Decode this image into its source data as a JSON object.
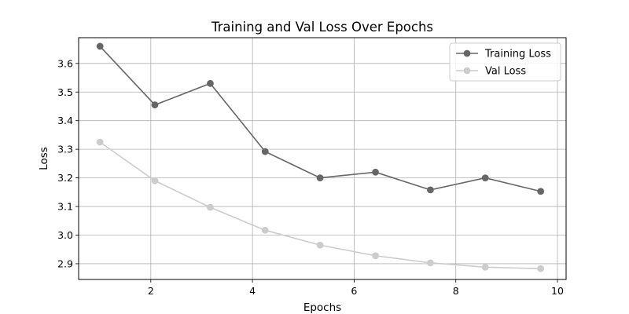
{
  "chart_data": {
    "type": "line",
    "title": "Training and Val Loss Over Epochs",
    "xlabel": "Epochs",
    "ylabel": "Loss",
    "xlim": [
      0.58,
      10.17
    ],
    "ylim": [
      2.845,
      3.69
    ],
    "xticks": [
      2,
      4,
      6,
      8,
      10
    ],
    "yticks": [
      2.9,
      3.0,
      3.1,
      3.2,
      3.3,
      3.4,
      3.5,
      3.6
    ],
    "grid": true,
    "legend_position": "top-right",
    "series": [
      {
        "name": "Training Loss",
        "color": "#666666",
        "marker": "circle",
        "x": [
          1.0,
          2.08,
          3.17,
          4.25,
          5.33,
          6.42,
          7.5,
          8.58,
          9.67
        ],
        "y": [
          3.66,
          3.455,
          3.53,
          3.292,
          3.2,
          3.22,
          3.158,
          3.2,
          3.153
        ]
      },
      {
        "name": "Val Loss",
        "color": "#cccccc",
        "marker": "circle",
        "x": [
          1.0,
          2.08,
          3.17,
          4.25,
          5.33,
          6.42,
          7.5,
          8.58,
          9.67
        ],
        "y": [
          3.325,
          3.19,
          3.097,
          3.017,
          2.965,
          2.928,
          2.903,
          2.888,
          2.883
        ]
      }
    ]
  }
}
